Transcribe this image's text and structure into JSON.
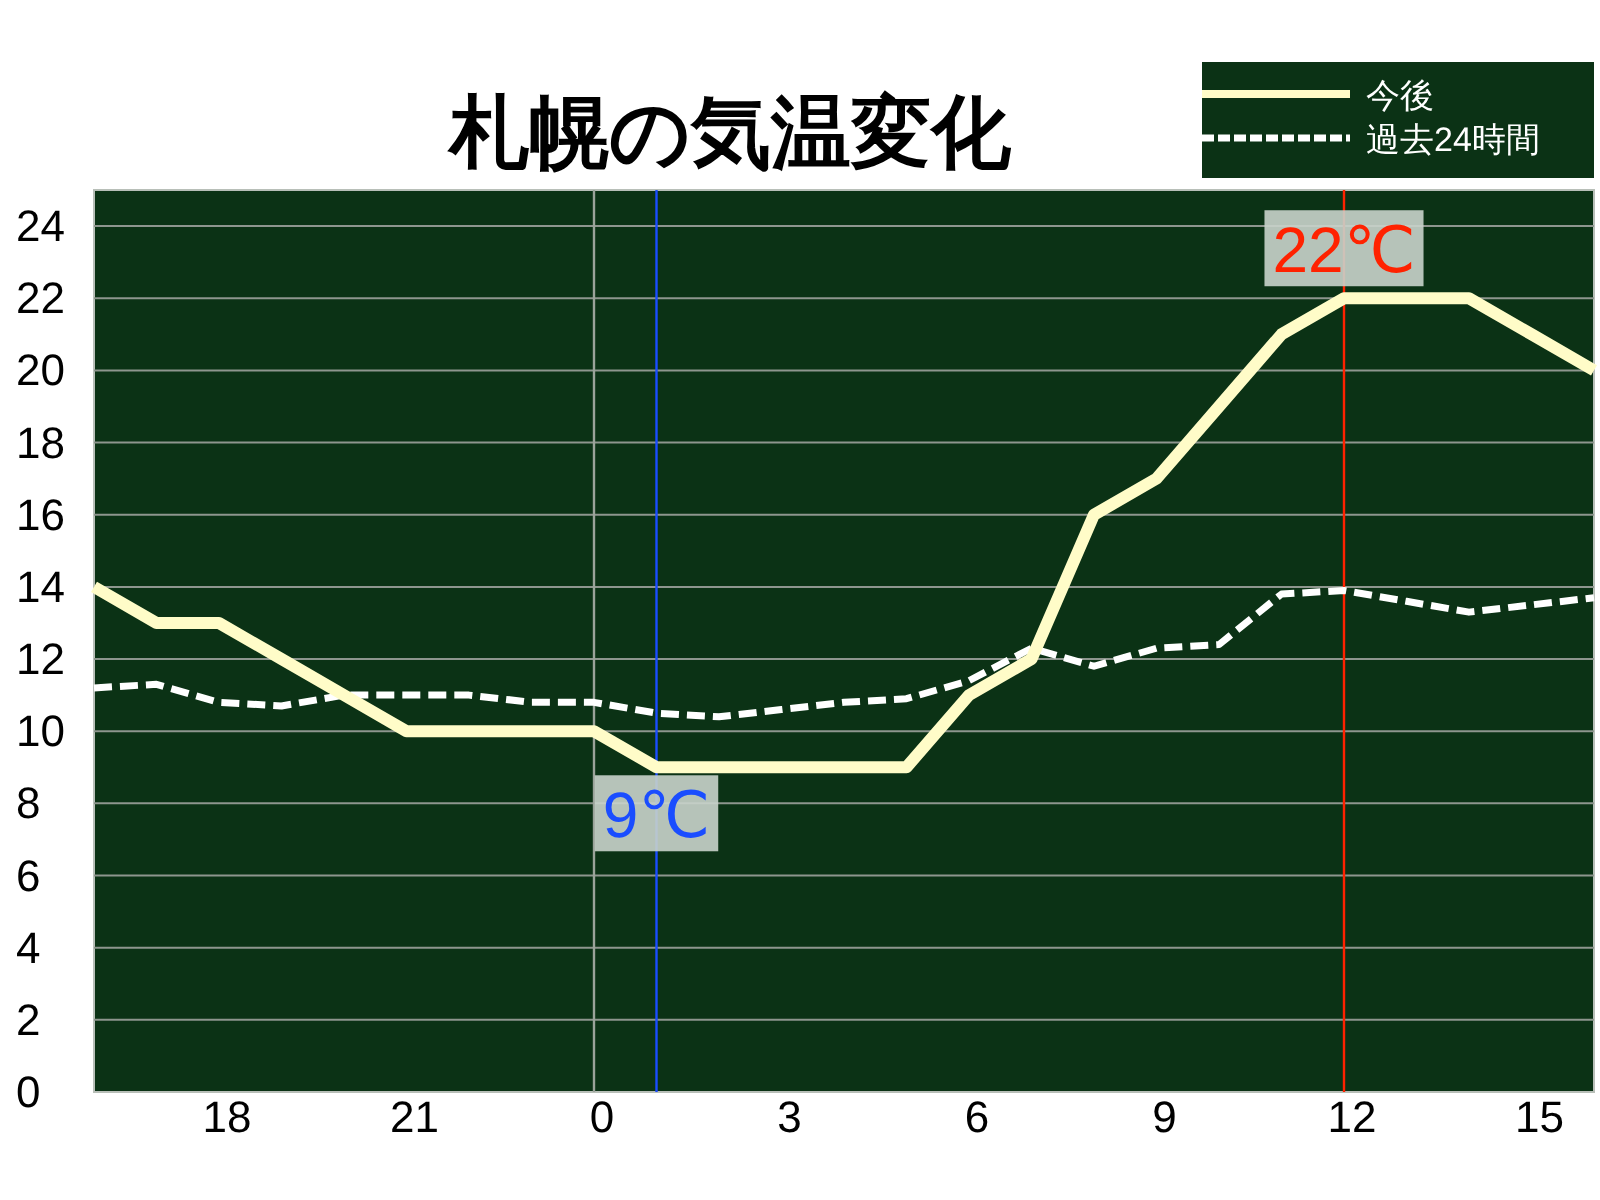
{
  "chart_data": {
    "type": "line",
    "title": "札幌の気温変化",
    "categories": [
      null,
      null,
      "18",
      null,
      null,
      "21",
      null,
      null,
      "0",
      null,
      null,
      "3",
      null,
      null,
      "6",
      null,
      null,
      "9",
      null,
      null,
      "12",
      null,
      null,
      "15",
      null
    ],
    "ylim": [
      0,
      25
    ],
    "yticks": [
      0,
      2,
      4,
      6,
      8,
      10,
      12,
      14,
      16,
      18,
      20,
      22,
      24
    ],
    "grid": "y",
    "legend": "top right",
    "series": [
      {
        "name": "今後",
        "color": "#fffcc8",
        "line_style": "solid",
        "values": [
          14,
          13,
          13,
          12,
          11,
          10,
          10,
          10,
          10,
          9,
          9,
          9,
          9,
          9,
          11,
          12,
          16,
          17,
          19,
          21,
          22,
          22,
          22,
          21,
          20
        ]
      },
      {
        "name": "過去24時間",
        "color": "#ffffff",
        "line_style": "dashed",
        "values": [
          11.2,
          11.3,
          10.8,
          10.7,
          11.0,
          11.0,
          11.0,
          10.8,
          10.8,
          10.5,
          10.4,
          10.6,
          10.8,
          10.9,
          11.4,
          12.3,
          11.8,
          12.3,
          12.4,
          13.8,
          13.9,
          13.6,
          13.3,
          13.5,
          13.7
        ]
      }
    ],
    "ref_lines": [
      {
        "axis": "x",
        "value": "0",
        "color": "#9aa39a"
      },
      {
        "axis": "x",
        "value": "12",
        "color": "#ff2200",
        "label": "22℃"
      }
    ],
    "annotations": [
      {
        "text": "9℃",
        "y": 9
      }
    ]
  }
}
